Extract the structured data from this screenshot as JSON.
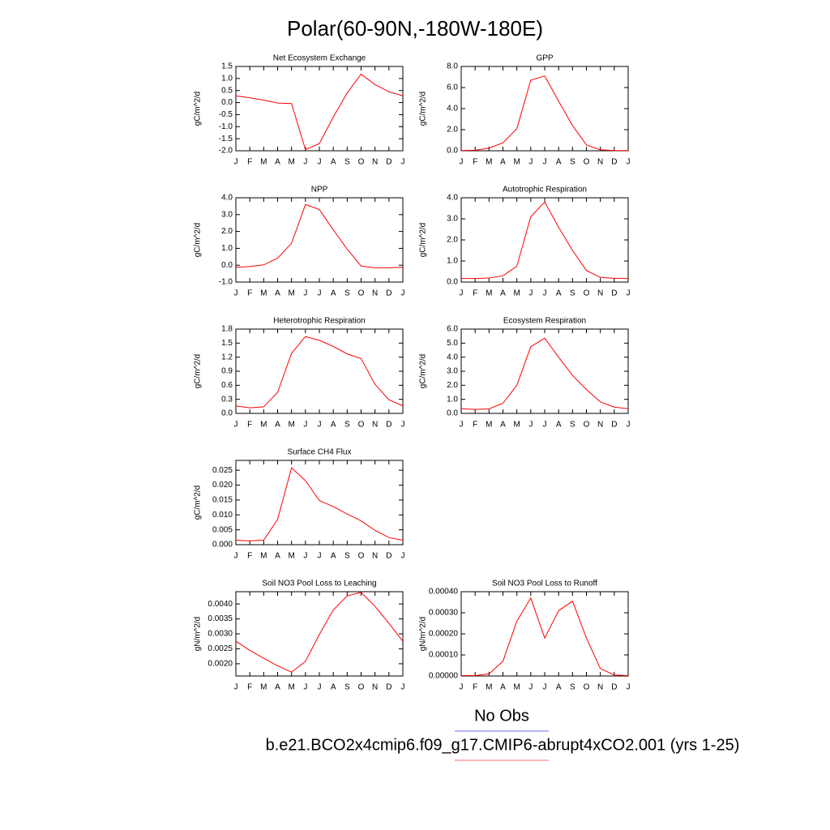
{
  "title": "Polar(60-90N,-180W-180E)",
  "legend": [
    {
      "label": "No Obs",
      "color": "#6b6bff"
    },
    {
      "label": "b.e21.BCO2x4cmip6.f09_g17.CMIP6-abrupt4xCO2.001 (yrs 1-25)",
      "color": "#ff6b6b"
    }
  ],
  "chart_data": [
    {
      "type": "line",
      "title": "Net Ecosystem Exchange",
      "ylabel": "gC/m^2/d",
      "color": "#ff0000",
      "categories": [
        "J",
        "F",
        "M",
        "A",
        "M",
        "J",
        "J",
        "A",
        "S",
        "O",
        "N",
        "D",
        "J"
      ],
      "values": [
        0.28,
        0.2,
        0.1,
        -0.02,
        -0.04,
        -1.95,
        -1.7,
        -0.6,
        0.4,
        1.18,
        0.75,
        0.45,
        0.28
      ],
      "ylim": [
        -2.0,
        1.5
      ],
      "yticks": [
        {
          "value": -2.0,
          "label": "-2.0"
        },
        {
          "value": -1.5,
          "label": "-1.5"
        },
        {
          "value": -1.0,
          "label": "-1.0"
        },
        {
          "value": -0.5,
          "label": "-0.5"
        },
        {
          "value": 0,
          "label": "0.0"
        },
        0.5,
        {
          "value": 1.0,
          "label": "1.0"
        },
        1.5
      ]
    },
    {
      "type": "line",
      "title": "GPP",
      "ylabel": "gC/m^2/d",
      "color": "#ff0000",
      "categories": [
        "J",
        "F",
        "M",
        "A",
        "M",
        "J",
        "J",
        "A",
        "S",
        "O",
        "N",
        "D",
        "J"
      ],
      "values": [
        0.02,
        0.05,
        0.25,
        0.75,
        2.1,
        6.7,
        7.1,
        4.7,
        2.4,
        0.55,
        0.1,
        0.02,
        0.02
      ],
      "ylim": [
        0,
        8
      ],
      "yticks": [
        {
          "value": 0,
          "label": "0.0"
        },
        {
          "value": 2,
          "label": "2.0"
        },
        {
          "value": 4,
          "label": "4.0"
        },
        {
          "value": 6,
          "label": "6.0"
        },
        {
          "value": 8,
          "label": "8.0"
        }
      ]
    },
    {
      "type": "line",
      "title": "NPP",
      "ylabel": "gC/m^2/d",
      "color": "#ff0000",
      "categories": [
        "J",
        "F",
        "M",
        "A",
        "M",
        "J",
        "J",
        "A",
        "S",
        "O",
        "N",
        "D",
        "J"
      ],
      "values": [
        -0.12,
        -0.08,
        0.02,
        0.42,
        1.3,
        3.6,
        3.3,
        2.1,
        0.95,
        -0.05,
        -0.15,
        -0.15,
        -0.12
      ],
      "ylim": [
        -1,
        4
      ],
      "yticks": [
        {
          "value": -1,
          "label": "-1.0"
        },
        {
          "value": 0,
          "label": "0.0"
        },
        {
          "value": 1,
          "label": "1.0"
        },
        {
          "value": 2,
          "label": "2.0"
        },
        {
          "value": 3,
          "label": "3.0"
        },
        {
          "value": 4,
          "label": "4.0"
        }
      ]
    },
    {
      "type": "line",
      "title": "Autotrophic Respiration",
      "ylabel": "gC/m^2/d",
      "color": "#ff0000",
      "categories": [
        "J",
        "F",
        "M",
        "A",
        "M",
        "J",
        "J",
        "A",
        "S",
        "O",
        "N",
        "D",
        "J"
      ],
      "values": [
        0.17,
        0.17,
        0.19,
        0.3,
        0.75,
        3.1,
        3.8,
        2.6,
        1.5,
        0.55,
        0.22,
        0.18,
        0.17
      ],
      "ylim": [
        0,
        4
      ],
      "yticks": [
        {
          "value": 0,
          "label": "0.0"
        },
        {
          "value": 1,
          "label": "1.0"
        },
        {
          "value": 2,
          "label": "2.0"
        },
        {
          "value": 3,
          "label": "3.0"
        },
        {
          "value": 4,
          "label": "4.0"
        }
      ]
    },
    {
      "type": "line",
      "title": "Heterotrophic Respiration",
      "ylabel": "gC/m^2/d",
      "color": "#ff0000",
      "categories": [
        "J",
        "F",
        "M",
        "A",
        "M",
        "J",
        "J",
        "A",
        "S",
        "O",
        "N",
        "D",
        "J"
      ],
      "values": [
        0.16,
        0.12,
        0.14,
        0.45,
        1.28,
        1.64,
        1.56,
        1.43,
        1.27,
        1.17,
        0.62,
        0.29,
        0.16
      ],
      "ylim": [
        0,
        1.8
      ],
      "yticks": [
        {
          "value": 0,
          "label": "0.0"
        },
        0.3,
        0.6,
        0.9,
        1.2,
        1.5,
        1.8
      ]
    },
    {
      "type": "line",
      "title": "Ecosystem Respiration",
      "ylabel": "gC/m^2/d",
      "color": "#ff0000",
      "categories": [
        "J",
        "F",
        "M",
        "A",
        "M",
        "J",
        "J",
        "A",
        "S",
        "O",
        "N",
        "D",
        "J"
      ],
      "values": [
        0.33,
        0.28,
        0.32,
        0.72,
        2.0,
        4.75,
        5.35,
        4.0,
        2.7,
        1.7,
        0.82,
        0.45,
        0.33
      ],
      "ylim": [
        0,
        6
      ],
      "yticks": [
        {
          "value": 0,
          "label": "0.0"
        },
        {
          "value": 1,
          "label": "1.0"
        },
        {
          "value": 2,
          "label": "2.0"
        },
        {
          "value": 3,
          "label": "3.0"
        },
        {
          "value": 4,
          "label": "4.0"
        },
        {
          "value": 5,
          "label": "5.0"
        },
        {
          "value": 6,
          "label": "6.0"
        }
      ]
    },
    {
      "type": "line",
      "title": "Surface CH4 Flux",
      "ylabel": "gC/m^2/d",
      "color": "#ff0000",
      "categories": [
        "J",
        "F",
        "M",
        "A",
        "M",
        "J",
        "J",
        "A",
        "S",
        "O",
        "N",
        "D",
        "J"
      ],
      "values": [
        0.0015,
        0.0013,
        0.0015,
        0.0085,
        0.0258,
        0.0215,
        0.0148,
        0.0128,
        0.0103,
        0.008,
        0.0048,
        0.0024,
        0.0015
      ],
      "ylim": [
        0,
        0.0283
      ],
      "yticks": [
        {
          "value": 0,
          "label": "0.000"
        },
        0.005,
        {
          "value": 0.01,
          "label": "0.010"
        },
        0.015,
        {
          "value": 0.02,
          "label": "0.020"
        },
        0.025
      ]
    },
    {
      "type": "line",
      "title": "Soil NO3 Pool Loss to Leaching",
      "ylabel": "gN/m^2/d",
      "color": "#ff0000",
      "categories": [
        "J",
        "F",
        "M",
        "A",
        "M",
        "J",
        "J",
        "A",
        "S",
        "O",
        "N",
        "D",
        "J"
      ],
      "values": [
        0.00275,
        0.00245,
        0.00218,
        0.00193,
        0.00172,
        0.00208,
        0.00298,
        0.0038,
        0.00427,
        0.00439,
        0.00392,
        0.00335,
        0.00275
      ],
      "ylim": [
        0.00159,
        0.00441
      ],
      "yticks": [
        {
          "value": 0.002,
          "label": "0.0020"
        },
        0.0025,
        {
          "value": 0.003,
          "label": "0.0030"
        },
        0.0035,
        {
          "value": 0.004,
          "label": "0.0040"
        }
      ]
    },
    {
      "type": "line",
      "title": "Soil NO3 Pool Loss to Runoff",
      "ylabel": "gN/m^2/d",
      "color": "#ff0000",
      "categories": [
        "J",
        "F",
        "M",
        "A",
        "M",
        "J",
        "J",
        "A",
        "S",
        "O",
        "N",
        "D",
        "J"
      ],
      "values": [
        2e-06,
        2e-06,
        1e-05,
        7e-05,
        0.00026,
        0.00037,
        0.00018,
        0.00031,
        0.000355,
        0.00018,
        3.5e-05,
        5e-06,
        2e-06
      ],
      "ylim": [
        0,
        0.0004
      ],
      "yticks": [
        {
          "value": 0,
          "label": "0.00000"
        },
        {
          "value": 0.0001,
          "label": "0.00010"
        },
        {
          "value": 0.0002,
          "label": "0.00020"
        },
        {
          "value": 0.0003,
          "label": "0.00030"
        },
        {
          "value": 0.0004,
          "label": "0.00040"
        }
      ]
    }
  ]
}
